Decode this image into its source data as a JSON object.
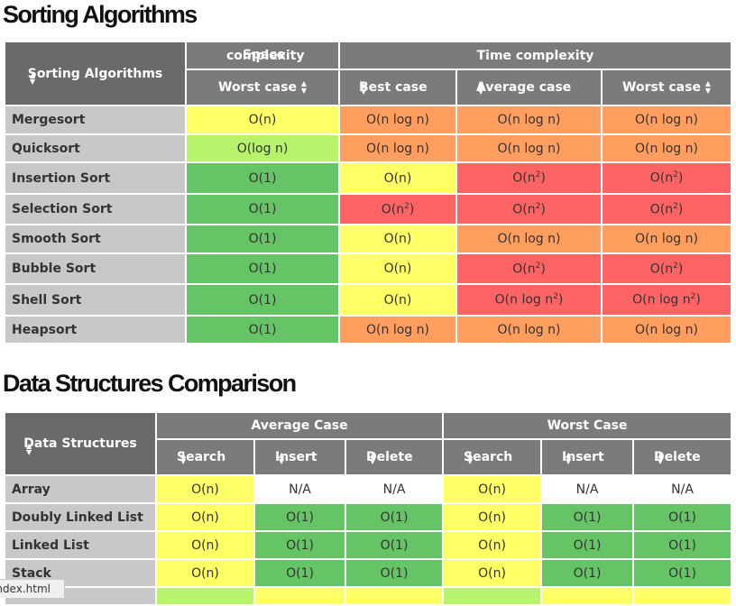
{
  "sorting": {
    "title": "Sorting Algorithms",
    "corner_label": "Sorting Algorithms",
    "space_group_a": "Space",
    "space_group_b": "complexity",
    "time_group": "Time complexity",
    "col_space_worst": "Worst case",
    "col_best": "Best case",
    "col_average": "Average case",
    "col_worst": "Worst case",
    "rows": [
      {
        "name": "Mergesort",
        "space": "O(n)",
        "best": "O(n log n)",
        "avg": "O(n log n)",
        "worst": "O(n log n)"
      },
      {
        "name": "Quicksort",
        "space": "O(log n)",
        "best": "O(n log n)",
        "avg": "O(n log n)",
        "worst": "O(n log n)"
      },
      {
        "name": "Insertion Sort",
        "space": "O(1)",
        "best": "O(n)",
        "avg_base": "O(n",
        "avg_exp": "2",
        "worst_base": "O(n",
        "worst_exp": "2"
      },
      {
        "name": "Selection Sort",
        "space": "O(1)",
        "best_base": "O(n",
        "best_exp": "2",
        "avg_base": "O(n",
        "avg_exp": "2",
        "worst_base": "O(n",
        "worst_exp": "2"
      },
      {
        "name": "Smooth Sort",
        "space": "O(1)",
        "best": "O(n)",
        "avg": "O(n log n)",
        "worst": "O(n log n)"
      },
      {
        "name": "Bubble Sort",
        "space": "O(1)",
        "best": "O(n)",
        "avg_base": "O(n",
        "avg_exp": "2",
        "worst_base": "O(n",
        "worst_exp": "2"
      },
      {
        "name": "Shell Sort",
        "space": "O(1)",
        "best": "O(n)",
        "avg_base": "O(n log n",
        "avg_exp": "2",
        "worst_base": "O(n log n",
        "worst_exp": "2"
      },
      {
        "name": "Heapsort",
        "space": "O(1)",
        "best": "O(n log n)",
        "avg": "O(n log n)",
        "worst": "O(n log n)"
      }
    ],
    "close_paren": ")"
  },
  "data_structures": {
    "title": "Data Structures Comparison",
    "corner_label": "Data Structures",
    "avg_group": "Average Case",
    "worst_group": "Worst Case",
    "col_search": "Search",
    "col_insert": "Insert",
    "col_delete": "Delete",
    "rows": [
      {
        "name": "Array",
        "a_search": "O(n)",
        "a_insert": "N/A",
        "a_delete": "N/A",
        "w_search": "O(n)",
        "w_insert": "N/A",
        "w_delete": "N/A"
      },
      {
        "name": "Doubly Linked List",
        "a_search": "O(n)",
        "a_insert": "O(1)",
        "a_delete": "O(1)",
        "w_search": "O(n)",
        "w_insert": "O(1)",
        "w_delete": "O(1)"
      },
      {
        "name": "Linked List",
        "a_search": "O(n)",
        "a_insert": "O(1)",
        "a_delete": "O(1)",
        "w_search": "O(n)",
        "w_insert": "O(1)",
        "w_delete": "O(1)"
      },
      {
        "name": "Stack",
        "a_search": "O(n)",
        "a_insert": "O(1)",
        "a_delete": "O(1)",
        "w_search": "O(n)",
        "w_insert": "O(1)",
        "w_delete": "O(1)"
      }
    ]
  },
  "status_bar": {
    "text": "index.html"
  },
  "icons": {
    "sort": "sort-arrows-icon",
    "arrow": "triangle-down-icon"
  },
  "colors": {
    "header": "#7b7b7b",
    "rowhead": "#c8c8c8",
    "yellow": "#ffff66",
    "lime": "#b8f36c",
    "green": "#65c465",
    "orange": "#ff9e5e",
    "red": "#ff6464"
  }
}
